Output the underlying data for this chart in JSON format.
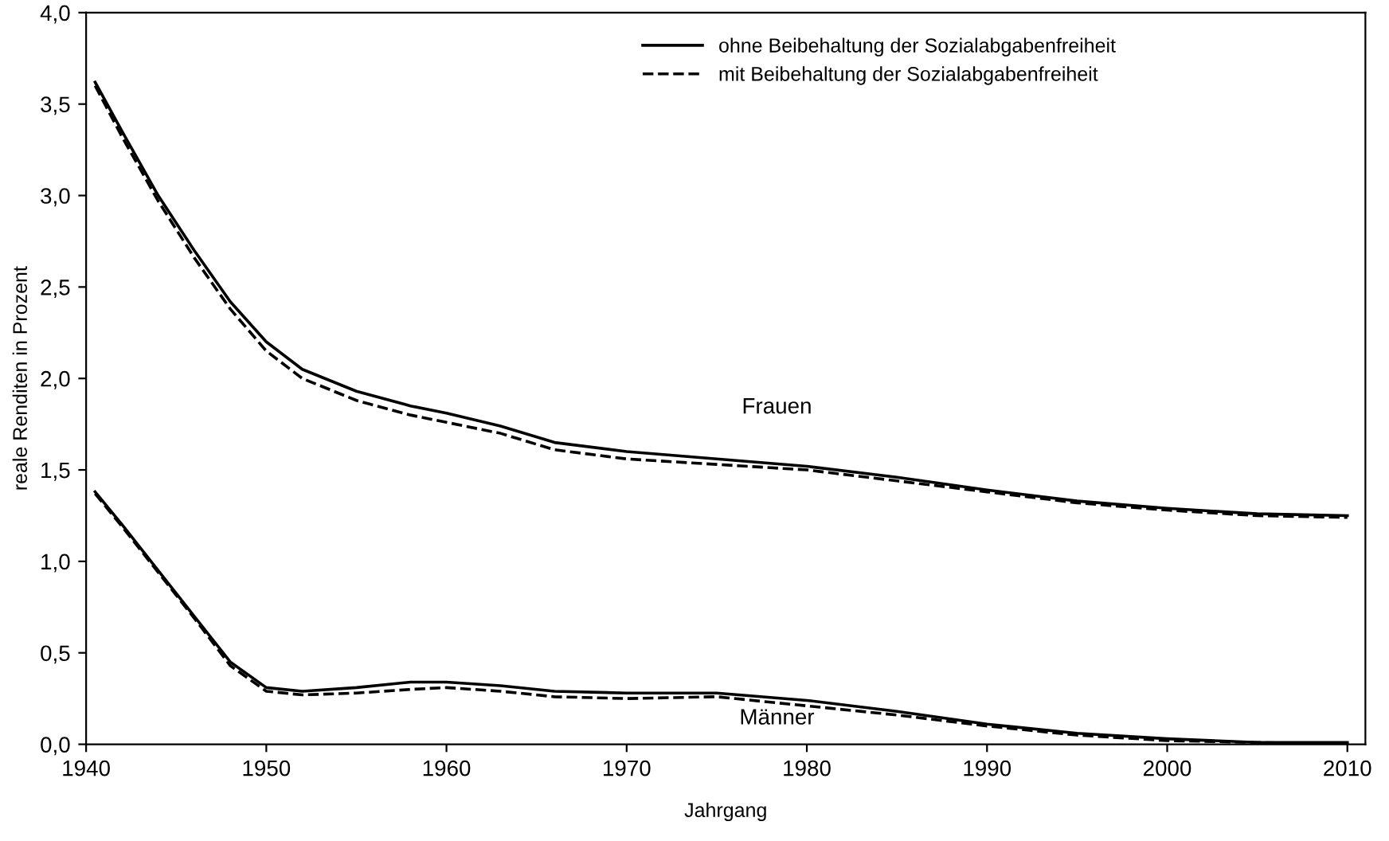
{
  "chart_data": {
    "type": "line",
    "xlabel": "Jahrgang",
    "ylabel": "reale Renditen in Prozent",
    "x": [
      1940.5,
      1942,
      1944,
      1946,
      1948,
      1950,
      1952,
      1955,
      1958,
      1960,
      1963,
      1966,
      1970,
      1975,
      1980,
      1985,
      1990,
      1995,
      2000,
      2005,
      2010
    ],
    "series": [
      {
        "name": "ohne Beibehaltung der Sozialabgabenfreiheit",
        "color": "#000000",
        "line_style": "solid",
        "values": [
          3.62,
          3.35,
          3.0,
          2.7,
          2.42,
          2.2,
          2.05,
          1.93,
          1.85,
          1.81,
          1.74,
          1.65,
          1.6,
          1.56,
          1.52,
          1.46,
          1.39,
          1.33,
          1.29,
          1.26,
          1.25
        ]
      },
      {
        "name": "mit Beibehaltung der Sozialabgabenfreiheit",
        "color": "#000000",
        "line_style": "dashed",
        "values": [
          3.6,
          3.32,
          2.97,
          2.66,
          2.38,
          2.15,
          2.0,
          1.88,
          1.8,
          1.76,
          1.7,
          1.61,
          1.56,
          1.53,
          1.5,
          1.44,
          1.38,
          1.32,
          1.28,
          1.25,
          1.24
        ]
      },
      {
        "color": "#000000",
        "line_style": "solid",
        "values": [
          1.38,
          1.2,
          0.95,
          0.7,
          0.45,
          0.31,
          0.29,
          0.31,
          0.34,
          0.34,
          0.32,
          0.29,
          0.28,
          0.28,
          0.24,
          0.18,
          0.11,
          0.06,
          0.03,
          0.01,
          0.01
        ]
      },
      {
        "color": "#000000",
        "line_style": "dashed",
        "values": [
          1.37,
          1.19,
          0.94,
          0.69,
          0.43,
          0.29,
          0.27,
          0.28,
          0.3,
          0.31,
          0.29,
          0.26,
          0.25,
          0.26,
          0.21,
          0.16,
          0.1,
          0.05,
          0.02,
          0.01,
          0.0
        ]
      }
    ],
    "annotations": [
      "Frauen",
      "Männer"
    ],
    "xlim": [
      1940,
      2011
    ],
    "xticks": [
      1940,
      1950,
      1960,
      1970,
      1980,
      1990,
      2000,
      2010
    ],
    "ylim": [
      0,
      4
    ],
    "yticks": [
      {
        "value": 0,
        "label": "0,0"
      },
      {
        "value": 0.5,
        "label": "0,5"
      },
      {
        "value": 1,
        "label": "1,0"
      },
      {
        "value": 1.5,
        "label": "1,5"
      },
      {
        "value": 2,
        "label": "2,0"
      },
      {
        "value": 2.5,
        "label": "2,5"
      },
      {
        "value": 3,
        "label": "3,0"
      },
      {
        "value": 3.5,
        "label": "3,5"
      },
      {
        "value": 4,
        "label": "4,0"
      }
    ],
    "grid": false,
    "legend": "top",
    "marker": "none"
  }
}
